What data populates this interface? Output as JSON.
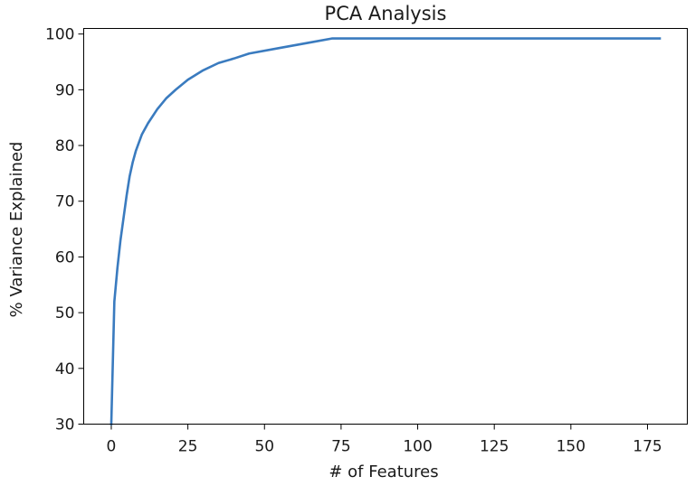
{
  "chart_data": {
    "type": "line",
    "title": "PCA Analysis",
    "xlabel": "# of Features",
    "ylabel": "% Variance Explained",
    "xlim": [
      -9,
      188
    ],
    "ylim": [
      30,
      101
    ],
    "x_ticks": [
      0,
      25,
      50,
      75,
      100,
      125,
      150,
      175
    ],
    "y_ticks": [
      30,
      40,
      50,
      60,
      70,
      80,
      90,
      100
    ],
    "grid": false,
    "legend": "none",
    "series": [
      {
        "color": "#3a7bbf",
        "x": [
          0,
          1,
          2,
          3,
          4,
          5,
          6,
          7,
          8,
          10,
          12,
          15,
          18,
          21,
          25,
          30,
          35,
          40,
          45,
          55,
          65,
          72,
          100,
          150,
          179
        ],
        "values": [
          30,
          52,
          58,
          63,
          67,
          71,
          74.5,
          77,
          79,
          82,
          84,
          86.5,
          88.5,
          90,
          91.8,
          93.5,
          94.8,
          95.6,
          96.5,
          97.5,
          98.5,
          99.2,
          99.2,
          99.2,
          99.2
        ]
      }
    ]
  }
}
